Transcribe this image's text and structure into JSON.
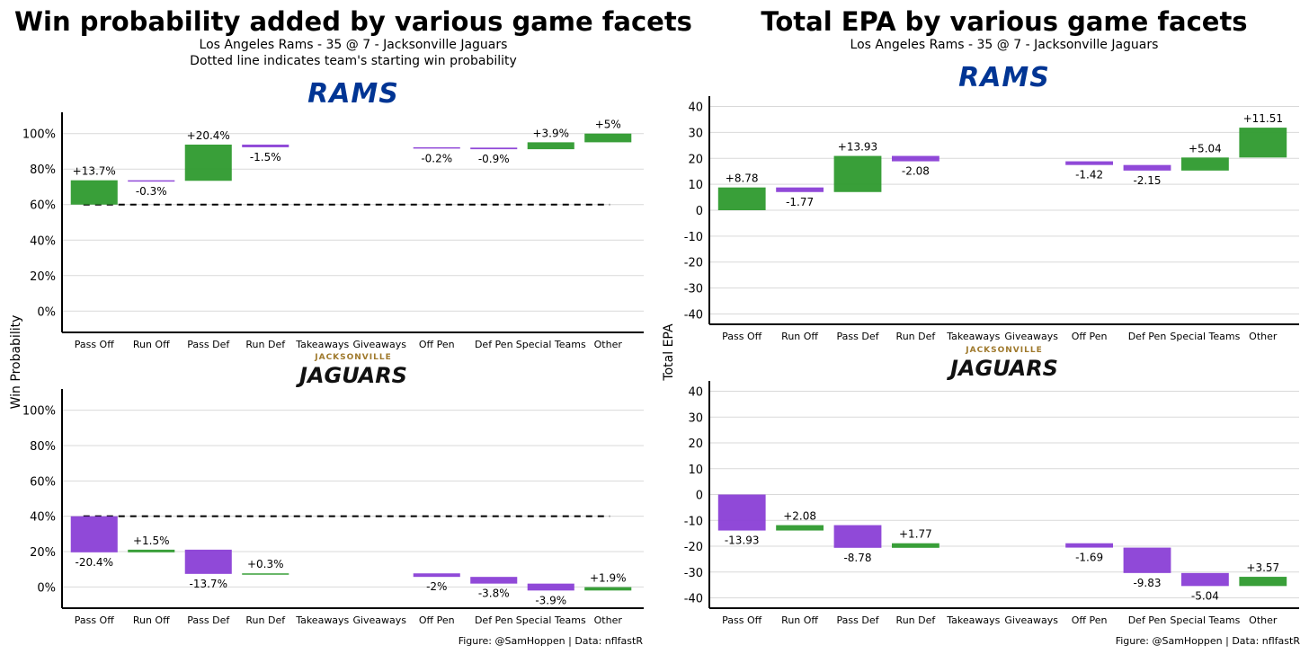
{
  "colors": {
    "positive": "#2E9A2E",
    "negative": "#8A3FD6",
    "rams_blue": "#003594",
    "jaguars_gold": "#9F792C",
    "grid": "#d9d9d9"
  },
  "left": {
    "title": "Win probability added by various game facets",
    "subtitle1": "Los Angeles Rams - 35 @ 7 - Jacksonville Jaguars",
    "subtitle2": "Dotted line indicates team's starting win probability",
    "ylabel": "Win Probability",
    "ymin": -12,
    "ymax": 112,
    "ticks": [
      "0%",
      "20%",
      "40%",
      "60%",
      "80%",
      "100%"
    ],
    "tick_values": [
      0,
      20,
      40,
      60,
      80,
      100
    ]
  },
  "right": {
    "title": "Total EPA by various game facets",
    "subtitle1": "Los Angeles Rams - 35 @ 7 - Jacksonville Jaguars",
    "ylabel": "Total EPA",
    "ymin": -44,
    "ymax": 44,
    "ticks": [
      "-40",
      "-30",
      "-20",
      "-10",
      "0",
      "10",
      "20",
      "30",
      "40"
    ],
    "tick_values": [
      -40,
      -30,
      -20,
      -10,
      0,
      10,
      20,
      30,
      40
    ]
  },
  "logos": {
    "rams": "RAMS",
    "jaguars_top": "JACKSONVILLE",
    "jaguars": "JAGUARS"
  },
  "credit": "Figure: @SamHoppen | Data: nflfastR",
  "chart_data": [
    {
      "type": "bar",
      "panel": "Rams win probability",
      "categories": [
        "Pass Off",
        "Run Off",
        "Pass Def",
        "Run Def",
        "Takeaways",
        "Giveaways",
        "Off Pen",
        "Def Pen",
        "Special Teams",
        "Other"
      ],
      "starting_value": 60,
      "bars": [
        {
          "start": 60,
          "end": 73.7,
          "label": "+13.7%"
        },
        {
          "start": 73.7,
          "end": 73.4,
          "label": "-0.3%"
        },
        {
          "start": 73.4,
          "end": 93.8,
          "label": "+20.4%"
        },
        {
          "start": 93.8,
          "end": 92.3,
          "label": "-1.5%"
        },
        null,
        null,
        {
          "start": 92.3,
          "end": 92.1,
          "label": "-0.2%"
        },
        {
          "start": 92.1,
          "end": 91.2,
          "label": "-0.9%"
        },
        {
          "start": 91.2,
          "end": 95.1,
          "label": "+3.9%"
        },
        {
          "start": 95.1,
          "end": 100,
          "label": "+5%"
        }
      ],
      "ylim": [
        -12,
        112
      ]
    },
    {
      "type": "bar",
      "panel": "Jaguars win probability",
      "categories": [
        "Pass Off",
        "Run Off",
        "Pass Def",
        "Run Def",
        "Takeaways",
        "Giveaways",
        "Off Pen",
        "Def Pen",
        "Special Teams",
        "Other"
      ],
      "starting_value": 40,
      "bars": [
        {
          "start": 40,
          "end": 19.6,
          "label": "-20.4%"
        },
        {
          "start": 19.6,
          "end": 21.1,
          "label": "+1.5%"
        },
        {
          "start": 21.1,
          "end": 7.4,
          "label": "-13.7%"
        },
        {
          "start": 7.4,
          "end": 7.7,
          "label": "+0.3%"
        },
        null,
        null,
        {
          "start": 7.7,
          "end": 5.7,
          "label": "-2%"
        },
        {
          "start": 5.7,
          "end": 1.9,
          "label": "-3.8%"
        },
        {
          "start": 1.9,
          "end": -2.0,
          "label": "-3.9%"
        },
        {
          "start": -2.0,
          "end": -0.1,
          "label": "+1.9%"
        }
      ],
      "ylim": [
        -12,
        112
      ]
    },
    {
      "type": "bar",
      "panel": "Rams total EPA",
      "categories": [
        "Pass Off",
        "Run Off",
        "Pass Def",
        "Run Def",
        "Takeaways",
        "Giveaways",
        "Off Pen",
        "Def Pen",
        "Special Teams",
        "Other"
      ],
      "bars": [
        {
          "start": 0,
          "end": 8.78,
          "label": "+8.78"
        },
        {
          "start": 8.78,
          "end": 7.01,
          "label": "-1.77"
        },
        {
          "start": 7.01,
          "end": 20.94,
          "label": "+13.93"
        },
        {
          "start": 20.94,
          "end": 18.86,
          "label": "-2.08"
        },
        null,
        null,
        {
          "start": 18.86,
          "end": 17.44,
          "label": "-1.42"
        },
        {
          "start": 17.44,
          "end": 15.29,
          "label": "-2.15"
        },
        {
          "start": 15.29,
          "end": 20.33,
          "label": "+5.04"
        },
        {
          "start": 20.33,
          "end": 31.84,
          "label": "+11.51"
        }
      ],
      "ylim": [
        -44,
        44
      ]
    },
    {
      "type": "bar",
      "panel": "Jaguars total EPA",
      "categories": [
        "Pass Off",
        "Run Off",
        "Pass Def",
        "Run Def",
        "Takeaways",
        "Giveaways",
        "Off Pen",
        "Def Pen",
        "Special Teams",
        "Other"
      ],
      "bars": [
        {
          "start": 0,
          "end": -13.93,
          "label": "-13.93"
        },
        {
          "start": -13.93,
          "end": -11.85,
          "label": "+2.08"
        },
        {
          "start": -11.85,
          "end": -20.63,
          "label": "-8.78"
        },
        {
          "start": -20.63,
          "end": -18.86,
          "label": "+1.77"
        },
        null,
        null,
        {
          "start": -18.86,
          "end": -20.55,
          "label": "-1.69"
        },
        {
          "start": -20.55,
          "end": -30.38,
          "label": "-9.83"
        },
        {
          "start": -30.38,
          "end": -35.42,
          "label": "-5.04"
        },
        {
          "start": -35.42,
          "end": -31.85,
          "label": "+3.57"
        }
      ],
      "ylim": [
        -44,
        44
      ]
    }
  ]
}
